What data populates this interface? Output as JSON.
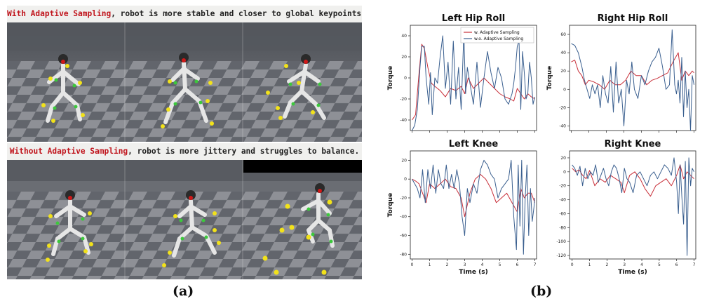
{
  "panel_a": {
    "top_caption": {
      "highlight": "With Adaptive Sampling",
      "rest": ", robot is more stable and closer to global keypoints."
    },
    "bottom_caption": {
      "highlight": "Without Adaptive Sampling",
      "rest": ", robot is more jittery and struggles to balance."
    },
    "label": "(a)"
  },
  "panel_b": {
    "label": "(b)"
  },
  "colors": {
    "adaptive": "#c8303a",
    "no_adaptive": "#3a5f8f",
    "keypoint_global": "#f2e21a",
    "keypoint_local": "#3cc83c"
  },
  "chart_data": [
    {
      "type": "line",
      "title": "Left Hip Roll",
      "ylabel": "Torque",
      "xlabel": "",
      "xlim": [
        -0.1,
        7.1
      ],
      "ylim": [
        -50,
        50
      ],
      "yticks": [
        -40,
        -20,
        0,
        20,
        40
      ],
      "xticks": [
        0,
        1,
        2,
        3,
        4,
        5,
        6,
        7
      ],
      "legend": "top-right",
      "series": [
        {
          "name": "w. Adaptive Sampling",
          "x": [
            0,
            0.2,
            0.4,
            0.55,
            0.7,
            0.9,
            1.1,
            1.3,
            1.6,
            1.9,
            2.2,
            2.5,
            2.8,
            3.0,
            3.2,
            3.5,
            3.8,
            4.1,
            4.4,
            4.7,
            5.0,
            5.3,
            5.6,
            5.8,
            6.0,
            6.2,
            6.4,
            6.6,
            6.8,
            7.0
          ],
          "y": [
            -40,
            -35,
            5,
            32,
            28,
            10,
            -5,
            -8,
            -12,
            -18,
            -10,
            -12,
            -8,
            -15,
            0,
            -10,
            -5,
            0,
            -5,
            -10,
            -15,
            -18,
            -20,
            -22,
            -10,
            -15,
            -20,
            -15,
            -18,
            -20
          ]
        },
        {
          "name": "w.o. Adaptive Sampling",
          "x": [
            0,
            0.15,
            0.3,
            0.45,
            0.55,
            0.7,
            0.8,
            0.95,
            1.05,
            1.15,
            1.3,
            1.45,
            1.6,
            1.75,
            1.9,
            2.05,
            2.2,
            2.35,
            2.5,
            2.65,
            2.8,
            2.95,
            3.05,
            3.15,
            3.3,
            3.5,
            3.7,
            3.9,
            4.1,
            4.3,
            4.5,
            4.7,
            4.9,
            5.1,
            5.3,
            5.5,
            5.7,
            5.8,
            5.9,
            6.0,
            6.1,
            6.2,
            6.3,
            6.4,
            6.5,
            6.6,
            6.7,
            6.8,
            6.9,
            7.0
          ],
          "y": [
            -50,
            -45,
            -30,
            10,
            30,
            30,
            0,
            -25,
            5,
            -35,
            0,
            -5,
            20,
            40,
            -10,
            15,
            -25,
            35,
            -20,
            10,
            -30,
            42,
            -15,
            10,
            -5,
            -25,
            15,
            -28,
            0,
            25,
            5,
            -10,
            10,
            0,
            -20,
            -25,
            -15,
            -5,
            10,
            30,
            35,
            -30,
            25,
            5,
            -20,
            -15,
            15,
            0,
            -25,
            -18
          ]
        }
      ]
    },
    {
      "type": "line",
      "title": "Right Hip Roll",
      "ylabel": "Torque",
      "xlabel": "",
      "xlim": [
        -0.1,
        7.1
      ],
      "ylim": [
        -45,
        70
      ],
      "yticks": [
        -40,
        -20,
        0,
        20,
        40,
        60
      ],
      "xticks": [
        0,
        1,
        2,
        3,
        4,
        5,
        6,
        7
      ],
      "series": [
        {
          "name": "w. Adaptive Sampling",
          "x": [
            0,
            0.2,
            0.4,
            0.6,
            0.8,
            1.0,
            1.3,
            1.6,
            1.9,
            2.2,
            2.5,
            2.8,
            3.1,
            3.4,
            3.7,
            4.0,
            4.3,
            4.6,
            4.9,
            5.2,
            5.5,
            5.8,
            6.1,
            6.3,
            6.5,
            6.7,
            6.9,
            7.0
          ],
          "y": [
            30,
            32,
            20,
            15,
            5,
            10,
            8,
            5,
            0,
            10,
            5,
            5,
            10,
            20,
            15,
            15,
            5,
            10,
            12,
            15,
            18,
            30,
            40,
            10,
            20,
            15,
            20,
            18
          ]
        },
        {
          "name": "w.o. Adaptive Sampling",
          "x": [
            0,
            0.2,
            0.4,
            0.6,
            0.75,
            0.9,
            1.05,
            1.2,
            1.35,
            1.5,
            1.65,
            1.8,
            1.95,
            2.1,
            2.25,
            2.4,
            2.55,
            2.7,
            2.85,
            3.0,
            3.15,
            3.3,
            3.45,
            3.6,
            3.8,
            4.0,
            4.2,
            4.4,
            4.6,
            4.8,
            5.0,
            5.2,
            5.4,
            5.6,
            5.75,
            5.9,
            6.0,
            6.1,
            6.2,
            6.3,
            6.4,
            6.5,
            6.6,
            6.7,
            6.8,
            6.9,
            7.0
          ],
          "y": [
            50,
            48,
            40,
            25,
            10,
            0,
            -10,
            5,
            -5,
            5,
            -20,
            15,
            -5,
            -15,
            25,
            -25,
            30,
            -15,
            0,
            -40,
            10,
            -5,
            30,
            0,
            -10,
            15,
            5,
            20,
            30,
            35,
            45,
            25,
            0,
            5,
            65,
            5,
            -5,
            10,
            -15,
            35,
            -30,
            20,
            -20,
            0,
            -45,
            15,
            5
          ]
        }
      ]
    },
    {
      "type": "line",
      "title": "Left Knee",
      "ylabel": "Torque",
      "xlabel": "Time (s)",
      "xlim": [
        -0.1,
        7.1
      ],
      "ylim": [
        -85,
        30
      ],
      "yticks": [
        -80,
        -60,
        -40,
        -20,
        0,
        20
      ],
      "xticks": [
        0,
        1,
        2,
        3,
        4,
        5,
        6,
        7
      ],
      "series": [
        {
          "name": "w. Adaptive Sampling",
          "x": [
            0,
            0.2,
            0.4,
            0.6,
            0.8,
            1.0,
            1.3,
            1.6,
            1.9,
            2.2,
            2.5,
            2.8,
            3.0,
            3.3,
            3.6,
            3.9,
            4.2,
            4.5,
            4.8,
            5.1,
            5.4,
            5.7,
            6.0,
            6.2,
            6.4,
            6.6,
            6.8,
            7.0
          ],
          "y": [
            0,
            -2,
            -5,
            -15,
            -25,
            -5,
            -10,
            -5,
            0,
            -8,
            -10,
            -20,
            -40,
            -15,
            0,
            5,
            0,
            -10,
            -25,
            -20,
            -15,
            -25,
            -35,
            -10,
            -20,
            -15,
            -15,
            -25
          ]
        },
        {
          "name": "w.o. Adaptive Sampling",
          "x": [
            0,
            0.15,
            0.3,
            0.45,
            0.6,
            0.75,
            0.9,
            1.05,
            1.2,
            1.35,
            1.5,
            1.65,
            1.8,
            1.95,
            2.1,
            2.25,
            2.4,
            2.55,
            2.7,
            2.85,
            3.0,
            3.15,
            3.3,
            3.5,
            3.7,
            3.9,
            4.1,
            4.3,
            4.5,
            4.7,
            4.9,
            5.1,
            5.3,
            5.5,
            5.65,
            5.8,
            5.95,
            6.05,
            6.15,
            6.25,
            6.35,
            6.45,
            6.55,
            6.65,
            6.75,
            6.85,
            6.95,
            7.0
          ],
          "y": [
            0,
            -5,
            -10,
            -20,
            10,
            -25,
            10,
            -10,
            15,
            -15,
            10,
            -5,
            -10,
            15,
            -10,
            5,
            -10,
            10,
            -5,
            -40,
            -60,
            -10,
            -25,
            -5,
            -15,
            10,
            20,
            15,
            5,
            0,
            -20,
            -10,
            -5,
            0,
            20,
            -40,
            -75,
            15,
            -50,
            20,
            -80,
            -20,
            15,
            -60,
            -10,
            -45,
            -30,
            -20
          ]
        }
      ]
    },
    {
      "type": "line",
      "title": "Right Knee",
      "ylabel": "",
      "xlabel": "Time (s)",
      "xlim": [
        -0.15,
        7.1
      ],
      "ylim": [
        -125,
        30
      ],
      "yticks": [
        -120,
        -100,
        -80,
        -60,
        -40,
        -20,
        0,
        20
      ],
      "xticks": [
        0,
        1,
        2,
        3,
        4,
        5,
        6,
        7
      ],
      "series": [
        {
          "name": "w. Adaptive Sampling",
          "x": [
            0,
            0.2,
            0.4,
            0.6,
            0.8,
            1.0,
            1.3,
            1.6,
            1.9,
            2.2,
            2.5,
            2.8,
            3.0,
            3.3,
            3.6,
            3.9,
            4.2,
            4.5,
            4.8,
            5.1,
            5.4,
            5.7,
            6.0,
            6.2,
            6.4,
            6.6,
            6.8,
            7.0
          ],
          "y": [
            5,
            0,
            3,
            -5,
            -10,
            2,
            -20,
            -10,
            -15,
            -5,
            -10,
            -15,
            -30,
            -5,
            0,
            -10,
            -25,
            -35,
            -20,
            -15,
            -10,
            -20,
            -5,
            10,
            -10,
            0,
            -5,
            -10
          ]
        },
        {
          "name": "w.o. Adaptive Sampling",
          "x": [
            0,
            0.15,
            0.3,
            0.45,
            0.6,
            0.75,
            0.9,
            1.05,
            1.2,
            1.35,
            1.5,
            1.65,
            1.8,
            1.95,
            2.1,
            2.25,
            2.4,
            2.55,
            2.7,
            2.85,
            3.0,
            3.15,
            3.3,
            3.5,
            3.7,
            3.9,
            4.1,
            4.3,
            4.5,
            4.7,
            4.9,
            5.1,
            5.3,
            5.5,
            5.7,
            5.85,
            6.0,
            6.1,
            6.2,
            6.3,
            6.4,
            6.5,
            6.6,
            6.7,
            6.8,
            6.9,
            7.0
          ],
          "y": [
            10,
            5,
            -5,
            8,
            -20,
            5,
            -10,
            0,
            -5,
            10,
            -15,
            -5,
            5,
            -10,
            -20,
            0,
            10,
            5,
            -10,
            -30,
            5,
            -10,
            -15,
            -30,
            -5,
            0,
            -10,
            -20,
            -5,
            0,
            -10,
            0,
            10,
            5,
            -5,
            20,
            -15,
            -60,
            10,
            -35,
            -75,
            15,
            -120,
            20,
            -20,
            5,
            0
          ]
        }
      ]
    }
  ]
}
